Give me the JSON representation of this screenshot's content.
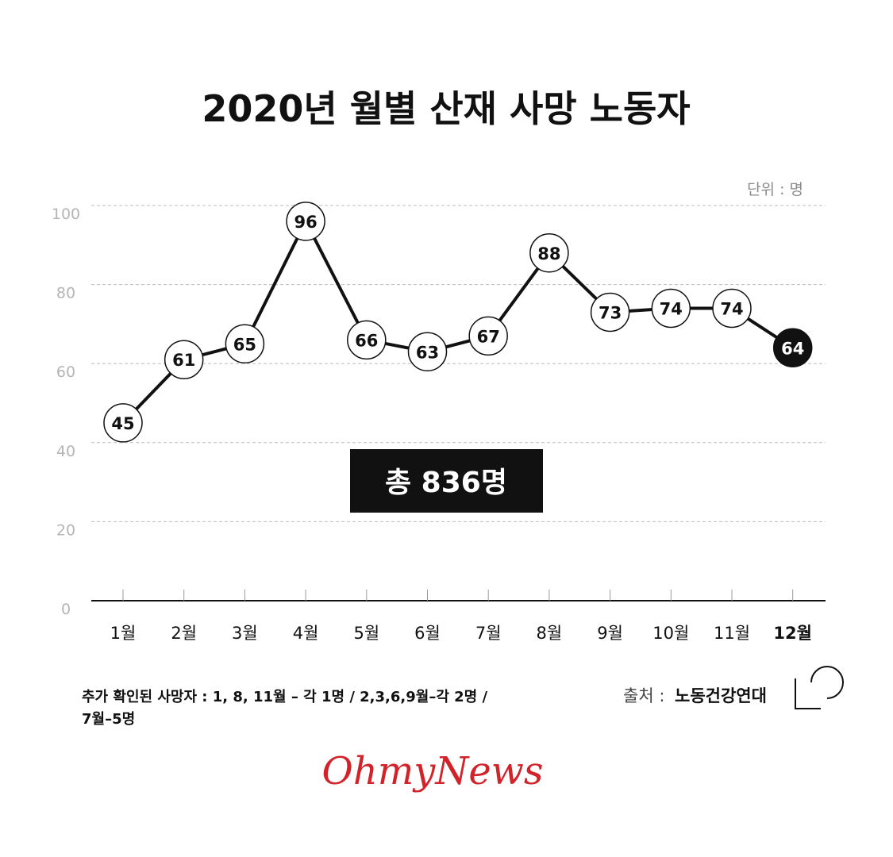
{
  "chart_data": {
    "type": "line",
    "title": "2020년 월별 산재 사망 노동자",
    "unit_label": "단위 : 명",
    "categories": [
      "1월",
      "2월",
      "3월",
      "4월",
      "5월",
      "6월",
      "7월",
      "8월",
      "9월",
      "10월",
      "11월",
      "12월"
    ],
    "values": [
      45,
      61,
      65,
      96,
      66,
      63,
      67,
      88,
      73,
      74,
      74,
      64
    ],
    "highlight_index": 11,
    "ylim": [
      0,
      100
    ],
    "yticks": [
      0,
      20,
      40,
      60,
      80,
      100
    ],
    "grid": true,
    "total_label": "총 836명"
  },
  "notes": {
    "line1": "추가 확인된 사망자 : 1, 8, 11월 – 각 1명 / 2,3,6,9월–각 2명 /",
    "line2": "7월–5명"
  },
  "source": {
    "key": "출처 :",
    "value": "노동건강연대"
  },
  "logo_text": "OhmyNews",
  "colors": {
    "line": "#111111",
    "highlight": "#111111",
    "grid": "#bdbdbd",
    "logo": "#d2232a"
  }
}
